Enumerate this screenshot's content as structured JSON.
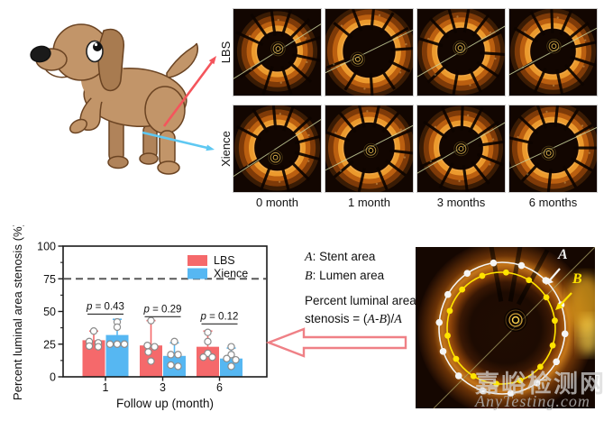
{
  "schematic": {
    "animal": "dog-cartoon",
    "lbs_label": "LBS",
    "xience_label": "Xience",
    "lbs_arrow_color": "#f4555c",
    "xience_arrow_color": "#5ec8f2"
  },
  "oct_grid": {
    "row_labels": [
      "LBS",
      "Xience"
    ],
    "month_labels": [
      "0 month",
      "1 month",
      "3 months",
      "6 months"
    ]
  },
  "annotation": {
    "a_label": "A",
    "a_text": ": Stent area",
    "b_label": "B",
    "b_text": ": Lumen area",
    "f1": "Percent luminal area",
    "f2_pre": "stenosis = (",
    "f2_a": "A",
    "f2_dash": "-",
    "f2_b": "B",
    "f2_slash": ")/",
    "f2_a2": "A"
  },
  "oct_panel": {
    "label_a": "A",
    "label_b": "B",
    "contour_a_color": "#f5f5f5",
    "contour_b_color": "#ffe400"
  },
  "watermark": {
    "cn": "嘉峪检测网",
    "en": "AnyTesting.com"
  },
  "chart_data": {
    "type": "bar",
    "title": "",
    "xlabel": "Follow up (month)",
    "ylabel": "Percent luminal area stenosis (%)",
    "categories": [
      "1",
      "3",
      "6"
    ],
    "yticks": [
      0,
      25,
      50,
      75,
      100
    ],
    "ylim": [
      0,
      100
    ],
    "grid": false,
    "legend_position": "upper right",
    "dashed_reference_line": 75,
    "dashed_line_color": "#595959",
    "series": [
      {
        "name": "LBS",
        "color": "#F5696B",
        "values": [
          28,
          24,
          23
        ],
        "error_upper": [
          35,
          43,
          35
        ],
        "points": [
          [
            [
              35,
              0
            ],
            [
              27,
              -5
            ],
            [
              26,
              5
            ],
            [
              23.5,
              -5
            ],
            [
              23,
              5
            ]
          ],
          [
            [
              43,
              0
            ],
            [
              24,
              -4
            ],
            [
              23,
              4
            ],
            [
              19,
              -3
            ],
            [
              12,
              0
            ]
          ],
          [
            [
              34,
              0
            ],
            [
              27,
              0
            ],
            [
              18,
              0
            ],
            [
              15,
              -5
            ],
            [
              15,
              5
            ]
          ]
        ]
      },
      {
        "name": "Xience",
        "color": "#56B7F2",
        "values": [
          32,
          16,
          14
        ],
        "error_upper": [
          44,
          26,
          22
        ],
        "points": [
          [
            [
              42,
              0
            ],
            [
              38,
              0
            ],
            [
              25,
              -8
            ],
            [
              25,
              0
            ],
            [
              25,
              8
            ]
          ],
          [
            [
              27,
              0
            ],
            [
              17,
              -4
            ],
            [
              17,
              4
            ],
            [
              9,
              -4
            ],
            [
              8,
              4
            ]
          ],
          [
            [
              23,
              0
            ],
            [
              17,
              0
            ],
            [
              14,
              -5
            ],
            [
              13,
              5
            ],
            [
              8,
              0
            ]
          ]
        ]
      }
    ],
    "p_values": [
      {
        "label": "p = 0.43",
        "bracket_y": 48
      },
      {
        "label": "p = 0.29",
        "bracket_y": 46
      },
      {
        "label": "p = 0.12",
        "bracket_y": 40.5
      }
    ]
  }
}
